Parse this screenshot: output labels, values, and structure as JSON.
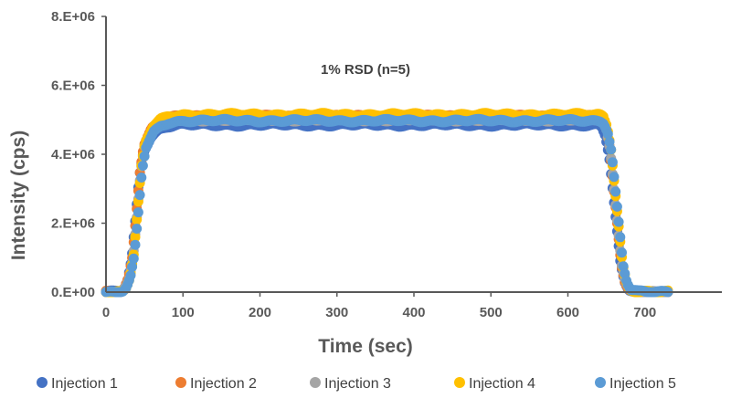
{
  "chart_data": {
    "type": "scatter",
    "title": "",
    "annotation": "1% RSD (n=5)",
    "xlabel": "Time (sec)",
    "ylabel": "Intensity (cps)",
    "xlim": [
      0,
      800
    ],
    "ylim": [
      0,
      8000000
    ],
    "x_ticks": [
      0,
      100,
      200,
      300,
      400,
      500,
      600,
      700
    ],
    "y_ticks": [
      0,
      2000000,
      4000000,
      6000000,
      8000000
    ],
    "x_tick_labels": [
      "0",
      "100",
      "200",
      "300",
      "400",
      "500",
      "600",
      "700"
    ],
    "y_tick_labels": [
      "0.E+00",
      "2.E+06",
      "4.E+06",
      "6.E+06",
      "8.E+06"
    ],
    "grid": false,
    "legend_position": "bottom",
    "profile": [
      [
        0,
        0
      ],
      [
        10,
        0
      ],
      [
        20,
        30000
      ],
      [
        25,
        120000
      ],
      [
        30,
        400000
      ],
      [
        35,
        1000000
      ],
      [
        40,
        2200000
      ],
      [
        45,
        3500000
      ],
      [
        50,
        4200000
      ],
      [
        60,
        4650000
      ],
      [
        70,
        4850000
      ],
      [
        80,
        4950000
      ],
      [
        100,
        5000000
      ],
      [
        640,
        5000000
      ],
      [
        645,
        4950000
      ],
      [
        650,
        4700000
      ],
      [
        655,
        4100000
      ],
      [
        660,
        3000000
      ],
      [
        665,
        1900000
      ],
      [
        670,
        800000
      ],
      [
        675,
        300000
      ],
      [
        680,
        80000
      ],
      [
        690,
        5000
      ],
      [
        700,
        0
      ],
      [
        730,
        0
      ]
    ],
    "series": [
      {
        "name": "Injection 1",
        "color": "#4472C4",
        "scale": 0.97
      },
      {
        "name": "Injection 2",
        "color": "#ED7D31",
        "scale": 1.02
      },
      {
        "name": "Injection 3",
        "color": "#A5A5A5",
        "scale": 1.0
      },
      {
        "name": "Injection 4",
        "color": "#FFC000",
        "scale": 1.03
      },
      {
        "name": "Injection 5",
        "color": "#5B9BD5",
        "scale": 0.995
      }
    ]
  }
}
